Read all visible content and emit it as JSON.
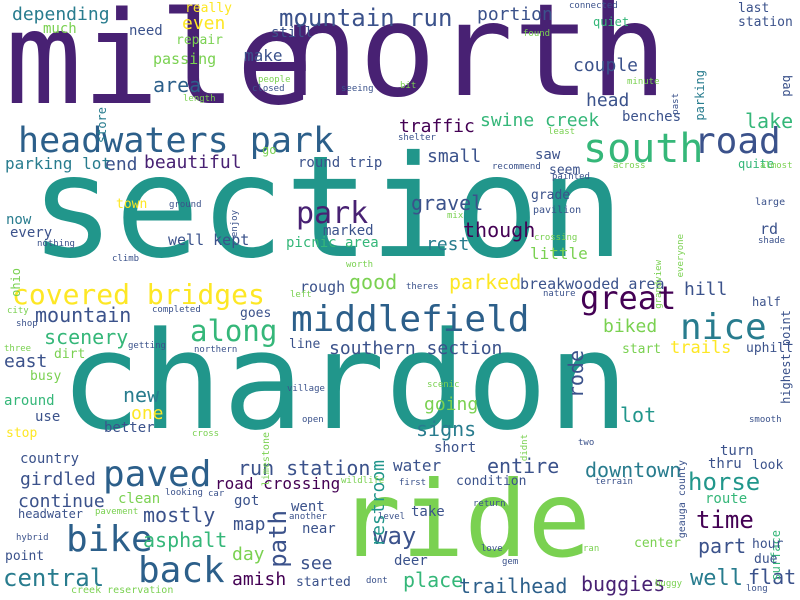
{
  "words": [
    {
      "text": "section",
      "color": "#21968b"
    },
    {
      "text": "chardon",
      "color": "#21968b"
    },
    {
      "text": "north",
      "color": "#482173"
    },
    {
      "text": "mile",
      "color": "#482173"
    },
    {
      "text": "ride",
      "color": "#7ad151"
    },
    {
      "text": "headwaters park",
      "color": "#2c5f8a"
    },
    {
      "text": "south",
      "color": "#35b779"
    },
    {
      "text": "road",
      "color": "#3b528b"
    },
    {
      "text": "middlefield",
      "color": "#2c5f8a"
    },
    {
      "text": "great",
      "color": "#440154"
    },
    {
      "text": "nice",
      "color": "#287c8e"
    },
    {
      "text": "paved",
      "color": "#2c5f8a"
    },
    {
      "text": "bike",
      "color": "#2c5f8a"
    },
    {
      "text": "back",
      "color": "#2c5f8a"
    },
    {
      "text": "covered bridges",
      "color": "#fde725"
    },
    {
      "text": "along",
      "color": "#35b779"
    },
    {
      "text": "park",
      "color": "#482173"
    },
    {
      "text": "mountain run",
      "color": "#3b528b"
    },
    {
      "text": "depending",
      "color": "#287c8e"
    },
    {
      "text": "way",
      "color": "#3b528b"
    },
    {
      "text": "time",
      "color": "#440154"
    },
    {
      "text": "horse",
      "color": "#21968b"
    },
    {
      "text": "path",
      "color": "#3b528b"
    },
    {
      "text": "rode",
      "color": "#3b528b"
    },
    {
      "text": "central",
      "color": "#287c8e"
    },
    {
      "text": "asphalt",
      "color": "#35b779"
    },
    {
      "text": "mostly",
      "color": "#3b528b"
    },
    {
      "text": "well",
      "color": "#287c8e"
    },
    {
      "text": "place",
      "color": "#35b779"
    },
    {
      "text": "trailhead",
      "color": "#2c5f8a"
    },
    {
      "text": "buggies",
      "color": "#482173"
    },
    {
      "text": "run station",
      "color": "#3b528b"
    },
    {
      "text": "downtown",
      "color": "#287c8e"
    },
    {
      "text": "entire",
      "color": "#3b528b"
    },
    {
      "text": "southern section",
      "color": "#3b528b"
    },
    {
      "text": "good",
      "color": "#7ad151"
    },
    {
      "text": "parked",
      "color": "#fde725"
    },
    {
      "text": "mountain",
      "color": "#3b528b"
    },
    {
      "text": "scenery",
      "color": "#35b779"
    },
    {
      "text": "swine creek",
      "color": "#35b779"
    },
    {
      "text": "couple",
      "color": "#3b528b"
    },
    {
      "text": "area",
      "color": "#2c5f8a"
    },
    {
      "text": "even",
      "color": "#fde725"
    },
    {
      "text": "lake",
      "color": "#35b779"
    },
    {
      "text": "head",
      "color": "#3b528b"
    },
    {
      "text": "traffic",
      "color": "#440154"
    },
    {
      "text": "beautiful",
      "color": "#482173"
    },
    {
      "text": "end",
      "color": "#3b528b"
    },
    {
      "text": "small",
      "color": "#3b528b"
    },
    {
      "text": "gravel",
      "color": "#3b528b"
    },
    {
      "text": "though",
      "color": "#440154"
    },
    {
      "text": "rest",
      "color": "#287c8e"
    },
    {
      "text": "hill",
      "color": "#3b528b"
    },
    {
      "text": "portion",
      "color": "#3b528b"
    },
    {
      "text": "make",
      "color": "#3b528b"
    },
    {
      "text": "signs",
      "color": "#287c8e"
    },
    {
      "text": "going",
      "color": "#7ad151"
    },
    {
      "text": "lot",
      "color": "#21968b"
    },
    {
      "text": "water",
      "color": "#3b528b"
    },
    {
      "text": "restroom",
      "color": "#21968b"
    },
    {
      "text": "flat",
      "color": "#3b528b"
    },
    {
      "text": "part",
      "color": "#3b528b"
    },
    {
      "text": "map",
      "color": "#3b528b"
    },
    {
      "text": "day",
      "color": "#7ad151"
    },
    {
      "text": "amish",
      "color": "#440154"
    },
    {
      "text": "new",
      "color": "#287c8e"
    },
    {
      "text": "one",
      "color": "#fde725"
    },
    {
      "text": "see",
      "color": "#3b528b"
    },
    {
      "text": "continue",
      "color": "#3b528b"
    },
    {
      "text": "girdled",
      "color": "#3b528b"
    },
    {
      "text": "road crossing",
      "color": "#440154"
    },
    {
      "text": "biked",
      "color": "#7ad151"
    },
    {
      "text": "trails",
      "color": "#fde725"
    },
    {
      "text": "east",
      "color": "#3b528b"
    },
    {
      "text": "parking lot",
      "color": "#287c8e"
    },
    {
      "text": "well kept",
      "color": "#3b528b"
    },
    {
      "text": "picnic area",
      "color": "#35b779"
    },
    {
      "text": "marked",
      "color": "#3b528b"
    },
    {
      "text": "rough",
      "color": "#3b528b"
    },
    {
      "text": "breakwooded area",
      "color": "#3b528b"
    },
    {
      "text": "little",
      "color": "#7ad151"
    },
    {
      "text": "store",
      "color": "#287c8e"
    },
    {
      "text": "passing",
      "color": "#7ad151"
    },
    {
      "text": "need",
      "color": "#3b528b"
    },
    {
      "text": "repair",
      "color": "#7ad151"
    },
    {
      "text": "still",
      "color": "#3b528b"
    },
    {
      "text": "really",
      "color": "#fde725"
    },
    {
      "text": "much",
      "color": "#7ad151"
    },
    {
      "text": "last",
      "color": "#3b528b"
    },
    {
      "text": "station",
      "color": "#3b528b"
    },
    {
      "text": "connected",
      "color": "#3b528b"
    },
    {
      "text": "quiet",
      "color": "#35b779"
    },
    {
      "text": "parking",
      "color": "#287c8e"
    },
    {
      "text": "bad",
      "color": "#3b528b"
    },
    {
      "text": "benches",
      "color": "#3b528b"
    },
    {
      "text": "quite",
      "color": "#35b779"
    },
    {
      "text": "almost",
      "color": "#7ad151"
    },
    {
      "text": "saw",
      "color": "#3b528b"
    },
    {
      "text": "seem",
      "color": "#3b528b"
    },
    {
      "text": "grade",
      "color": "#3b528b"
    },
    {
      "text": "pavilion",
      "color": "#3b528b"
    },
    {
      "text": "rd",
      "color": "#3b528b"
    },
    {
      "text": "large",
      "color": "#3b528b"
    },
    {
      "text": "highest point",
      "color": "#3b528b"
    },
    {
      "text": "shade",
      "color": "#3b528b"
    },
    {
      "text": "round trip",
      "color": "#3b528b"
    },
    {
      "text": "town",
      "color": "#fde725"
    },
    {
      "text": "now",
      "color": "#287c8e"
    },
    {
      "text": "every",
      "color": "#3b528b"
    },
    {
      "text": "nothing",
      "color": "#3b528b"
    },
    {
      "text": "ohio",
      "color": "#7ad151"
    },
    {
      "text": "go",
      "color": "#7ad151"
    },
    {
      "text": "ground",
      "color": "#3b528b"
    },
    {
      "text": "enjoy",
      "color": "#3b528b"
    },
    {
      "text": "crossing",
      "color": "#7ad151"
    },
    {
      "text": "grandview",
      "color": "#7ad151"
    },
    {
      "text": "everyone",
      "color": "#7ad151"
    },
    {
      "text": "half",
      "color": "#3b528b"
    },
    {
      "text": "uphill",
      "color": "#3b528b"
    },
    {
      "text": "start",
      "color": "#7ad151"
    },
    {
      "text": "busy",
      "color": "#7ad151"
    },
    {
      "text": "dirt",
      "color": "#7ad151"
    },
    {
      "text": "around",
      "color": "#35b779"
    },
    {
      "text": "use",
      "color": "#3b528b"
    },
    {
      "text": "stop",
      "color": "#fde725"
    },
    {
      "text": "better",
      "color": "#3b528b"
    },
    {
      "text": "country",
      "color": "#3b528b"
    },
    {
      "text": "clean",
      "color": "#7ad151"
    },
    {
      "text": "got",
      "color": "#3b528b"
    },
    {
      "text": "headwater",
      "color": "#3b528b"
    },
    {
      "text": "hybrid",
      "color": "#3b528b"
    },
    {
      "text": "point",
      "color": "#3b528b"
    },
    {
      "text": "creek reservation",
      "color": "#7ad151"
    },
    {
      "text": "went",
      "color": "#3b528b"
    },
    {
      "text": "near",
      "color": "#3b528b"
    },
    {
      "text": "started",
      "color": "#3b528b"
    },
    {
      "text": "deer",
      "color": "#3b528b"
    },
    {
      "text": "take",
      "color": "#3b528b"
    },
    {
      "text": "condition",
      "color": "#3b528b"
    },
    {
      "text": "short",
      "color": "#3b528b"
    },
    {
      "text": "geauga county",
      "color": "#3b528b"
    },
    {
      "text": "turn",
      "color": "#3b528b"
    },
    {
      "text": "thru",
      "color": "#3b528b"
    },
    {
      "text": "look",
      "color": "#3b528b"
    },
    {
      "text": "route",
      "color": "#35b779"
    },
    {
      "text": "surface",
      "color": "#35b779"
    },
    {
      "text": "hour",
      "color": "#3b528b"
    },
    {
      "text": "due",
      "color": "#3b528b"
    },
    {
      "text": "center",
      "color": "#7ad151"
    },
    {
      "text": "long",
      "color": "#3b528b"
    },
    {
      "text": "buggy",
      "color": "#7ad151"
    },
    {
      "text": "love",
      "color": "#3b528b"
    },
    {
      "text": "gem",
      "color": "#3b528b"
    },
    {
      "text": "ran",
      "color": "#7ad151"
    },
    {
      "text": "return",
      "color": "#3b528b"
    },
    {
      "text": "first",
      "color": "#3b528b"
    },
    {
      "text": "terrain",
      "color": "#3b528b"
    },
    {
      "text": "wildlife",
      "color": "#7ad151"
    },
    {
      "text": "level",
      "color": "#3b528b"
    },
    {
      "text": "dont",
      "color": "#3b528b"
    },
    {
      "text": "another",
      "color": "#3b528b"
    },
    {
      "text": "pavement",
      "color": "#7ad151"
    },
    {
      "text": "car",
      "color": "#3b528b"
    },
    {
      "text": "looking",
      "color": "#3b528b"
    },
    {
      "text": "smooth",
      "color": "#3b528b"
    },
    {
      "text": "two",
      "color": "#3b528b"
    },
    {
      "text": "didnt",
      "color": "#7ad151"
    },
    {
      "text": "scenic",
      "color": "#7ad151"
    },
    {
      "text": "open",
      "color": "#3b528b"
    },
    {
      "text": "village",
      "color": "#3b528b"
    },
    {
      "text": "limestone",
      "color": "#7ad151"
    },
    {
      "text": "cross",
      "color": "#7ad151"
    },
    {
      "text": "line",
      "color": "#3b528b"
    },
    {
      "text": "northern",
      "color": "#3b528b"
    },
    {
      "text": "getting",
      "color": "#3b528b"
    },
    {
      "text": "three",
      "color": "#7ad151"
    },
    {
      "text": "shop",
      "color": "#3b528b"
    },
    {
      "text": "city",
      "color": "#7ad151"
    },
    {
      "text": "completed",
      "color": "#3b528b"
    },
    {
      "text": "goes",
      "color": "#3b528b"
    },
    {
      "text": "left",
      "color": "#7ad151"
    },
    {
      "text": "worth",
      "color": "#7ad151"
    },
    {
      "text": "theres",
      "color": "#3b528b"
    },
    {
      "text": "nature",
      "color": "#3b528b"
    },
    {
      "text": "climb",
      "color": "#3b528b"
    },
    {
      "text": "mix",
      "color": "#7ad151"
    },
    {
      "text": "painted",
      "color": "#3b528b"
    },
    {
      "text": "across",
      "color": "#7ad151"
    },
    {
      "text": "recommend",
      "color": "#3b528b"
    },
    {
      "text": "shelter",
      "color": "#3b528b"
    },
    {
      "text": "least",
      "color": "#7ad151"
    },
    {
      "text": "seeing",
      "color": "#3b528b"
    },
    {
      "text": "bit",
      "color": "#7ad151"
    },
    {
      "text": "closed",
      "color": "#3b528b"
    },
    {
      "text": "people",
      "color": "#7ad151"
    },
    {
      "text": "length",
      "color": "#7ad151"
    },
    {
      "text": "minute",
      "color": "#7ad151"
    },
    {
      "text": "past",
      "color": "#3b528b"
    },
    {
      "text": "found",
      "color": "#7ad151"
    }
  ]
}
